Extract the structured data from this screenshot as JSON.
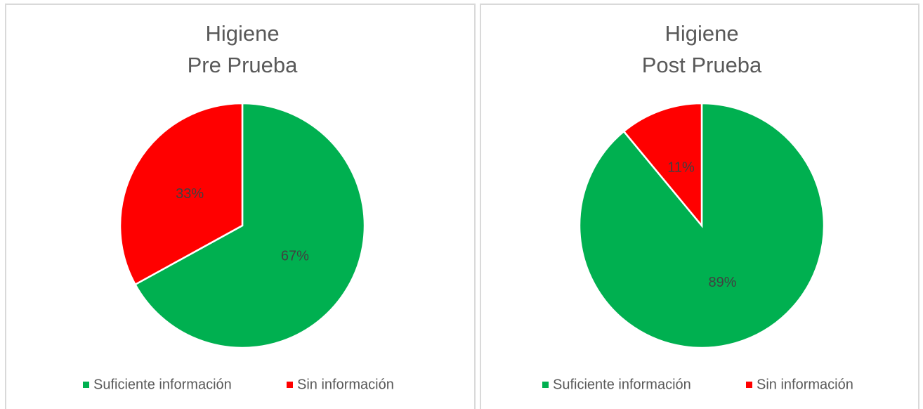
{
  "chart_data": [
    {
      "type": "pie",
      "title": [
        "Higiene",
        "Pre Prueba"
      ],
      "categories": [
        "Suficiente información",
        "Sin información"
      ],
      "values": [
        67,
        33
      ],
      "value_labels": [
        "67%",
        "33%"
      ],
      "colors": [
        "#00b050",
        "#ff0000"
      ],
      "legend": "bottom"
    },
    {
      "type": "pie",
      "title": [
        "Higiene",
        "Post Prueba"
      ],
      "categories": [
        "Suficiente información",
        "Sin información"
      ],
      "values": [
        89,
        11
      ],
      "value_labels": [
        "89%",
        "11%"
      ],
      "colors": [
        "#00b050",
        "#ff0000"
      ],
      "legend": "bottom"
    }
  ]
}
